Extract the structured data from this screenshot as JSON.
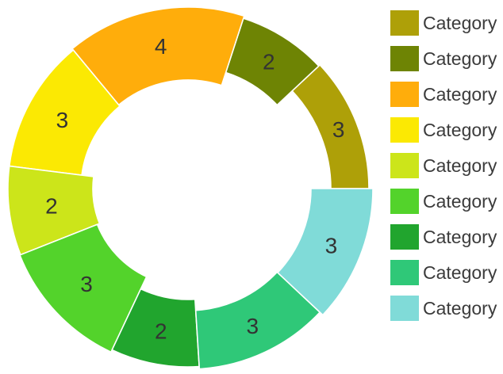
{
  "chart_data": {
    "type": "pie",
    "variant": "donut-variable-radius",
    "title": "",
    "legend_position": "right",
    "legend_label": "Category",
    "total": 25,
    "start_angle_deg": 0,
    "direction": "counterclockwise",
    "center": {
      "x": 237,
      "y": 238
    },
    "gap_stroke_color": "#ffffff",
    "value_label_color": "#333333",
    "legend_text_color": "#3b3b3b",
    "series": [
      {
        "label": "Category",
        "value": 3,
        "color": "#AEA008",
        "inner_radius": 180,
        "outer_radius": 228
      },
      {
        "label": "Category",
        "value": 2,
        "color": "#6E8404",
        "inner_radius": 154,
        "outer_radius": 226
      },
      {
        "label": "Category",
        "value": 4,
        "color": "#FFAD0B",
        "inner_radius": 137,
        "outer_radius": 229
      },
      {
        "label": "Category",
        "value": 3,
        "color": "#FBE903",
        "inner_radius": 135,
        "outer_radius": 227
      },
      {
        "label": "Category",
        "value": 2,
        "color": "#CCE51A",
        "inner_radius": 120,
        "outer_radius": 227
      },
      {
        "label": "Category",
        "value": 3,
        "color": "#53D32B",
        "inner_radius": 123,
        "outer_radius": 228
      },
      {
        "label": "Category",
        "value": 2,
        "color": "#21A52E",
        "inner_radius": 140,
        "outer_radius": 225
      },
      {
        "label": "Category",
        "value": 3,
        "color": "#2FC878",
        "inner_radius": 154,
        "outer_radius": 228
      },
      {
        "label": "Category",
        "value": 3,
        "color": "#80DBD8",
        "inner_radius": 155,
        "outer_radius": 233
      }
    ]
  }
}
